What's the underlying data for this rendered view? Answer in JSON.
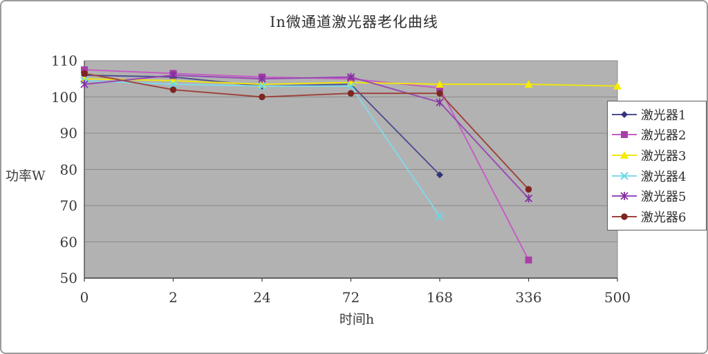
{
  "frame": {
    "background": "#ffffff",
    "border_color": "#9a9a9a"
  },
  "chart_data": {
    "type": "line",
    "title": "In微通道激光器老化曲线",
    "xlabel": "时间h",
    "ylabel": "功率W",
    "categories": [
      0,
      2,
      24,
      72,
      168,
      336,
      500
    ],
    "x_tick_labels": [
      "0",
      "2",
      "24",
      "72",
      "168",
      "336",
      "500"
    ],
    "y_ticks": [
      110,
      100,
      90,
      80,
      70,
      60,
      50
    ],
    "ylim": [
      50,
      110
    ],
    "grid": true,
    "plot_bg": "#b2b2b2",
    "grid_color": "#8a8a8a",
    "axis_color": "#3a3a3a",
    "legend_position": "right",
    "series": [
      {
        "name": "激光器1",
        "marker": "diamond",
        "color": "#4d4d8f",
        "marker_color": "#333377",
        "values": [
          106,
          105.5,
          103,
          103.5,
          78.5,
          null,
          null
        ]
      },
      {
        "name": "激光器2",
        "marker": "square",
        "color": "#c45bc4",
        "marker_color": "#a83fa8",
        "values": [
          107.5,
          106.5,
          105.5,
          105,
          102.5,
          55,
          null
        ]
      },
      {
        "name": "激光器3",
        "marker": "triangle",
        "color": "#f0e60e",
        "marker_color": "#f5ec00",
        "values": [
          105,
          104.5,
          103.5,
          104,
          103.5,
          103.5,
          103
        ]
      },
      {
        "name": "激光器4",
        "marker": "x",
        "color": "#7fdbe8",
        "marker_color": "#6cd6e6",
        "values": [
          104.5,
          103.5,
          103,
          103,
          67,
          null,
          null
        ]
      },
      {
        "name": "激光器5",
        "marker": "star",
        "color": "#9747b5",
        "marker_color": "#82309f",
        "values": [
          103.5,
          106,
          105,
          105.5,
          98.5,
          72,
          null
        ]
      },
      {
        "name": "激光器6",
        "marker": "circle",
        "color": "#9c423b",
        "marker_color": "#7c2620",
        "values": [
          106.5,
          102,
          100,
          101,
          101,
          74.5,
          null
        ]
      }
    ]
  }
}
